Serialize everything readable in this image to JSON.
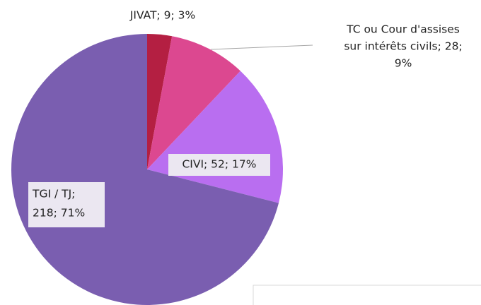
{
  "chart_data": {
    "type": "pie",
    "values": [
      9,
      28,
      52,
      218
    ],
    "value_labels": [
      [
        "JIVAT; 9; 3%"
      ],
      [
        "TC ou Cour d'assises",
        "sur intérêts civils; 28;",
        "9%"
      ],
      [
        "CIVI; 52; 17%"
      ],
      [
        "TGI / TJ;",
        "218; 71%"
      ]
    ],
    "colors": [
      "#b41f42",
      "#dc4890",
      "#b96ef0",
      "#7a5eb0"
    ]
  }
}
